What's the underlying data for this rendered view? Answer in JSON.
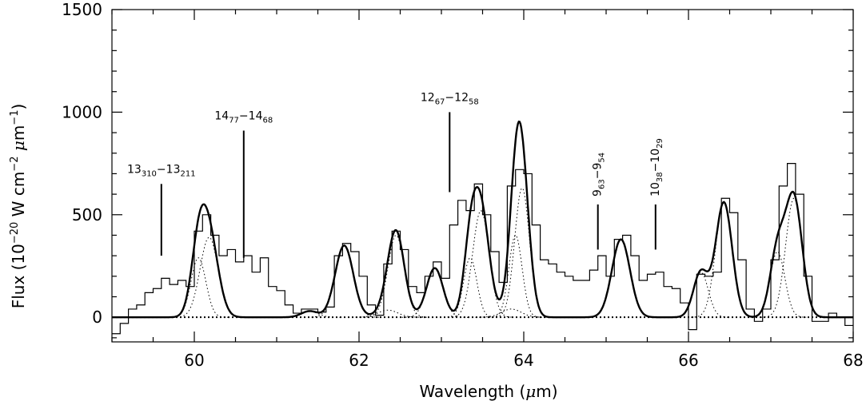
{
  "chart_data": {
    "type": "line",
    "xlabel": {
      "prefix": "Wavelength (",
      "mu": "μ",
      "suffix": "m)"
    },
    "ylabel": {
      "prefix": "Flux (10",
      "exp1": "−20",
      "mid": " W cm",
      "exp2": "−2",
      "space": " ",
      "mu": "μ",
      "m": "m",
      "exp3": "−1",
      "close": ")"
    },
    "xlim": [
      59,
      68
    ],
    "ylim": [
      -120,
      1500
    ],
    "x_ticks": [
      60,
      62,
      64,
      66,
      68
    ],
    "y_ticks": [
      0,
      500,
      1000,
      1500
    ],
    "legend": "none",
    "grid": false,
    "observed_spectrum": {
      "style": "histogram",
      "bins": [
        [
          59.0,
          -80
        ],
        [
          59.1,
          -30
        ],
        [
          59.2,
          40
        ],
        [
          59.3,
          60
        ],
        [
          59.4,
          120
        ],
        [
          59.5,
          140
        ],
        [
          59.6,
          190
        ],
        [
          59.7,
          160
        ],
        [
          59.8,
          180
        ],
        [
          59.9,
          150
        ],
        [
          60.0,
          420
        ],
        [
          60.1,
          500
        ],
        [
          60.2,
          400
        ],
        [
          60.3,
          300
        ],
        [
          60.4,
          330
        ],
        [
          60.5,
          270
        ],
        [
          60.6,
          300
        ],
        [
          60.7,
          220
        ],
        [
          60.8,
          290
        ],
        [
          60.9,
          150
        ],
        [
          61.0,
          130
        ],
        [
          61.1,
          60
        ],
        [
          61.2,
          20
        ],
        [
          61.3,
          40
        ],
        [
          61.4,
          40
        ],
        [
          61.5,
          25
        ],
        [
          61.6,
          50
        ],
        [
          61.7,
          300
        ],
        [
          61.8,
          360
        ],
        [
          61.9,
          320
        ],
        [
          62.0,
          200
        ],
        [
          62.1,
          60
        ],
        [
          62.2,
          10
        ],
        [
          62.3,
          260
        ],
        [
          62.4,
          420
        ],
        [
          62.5,
          330
        ],
        [
          62.6,
          150
        ],
        [
          62.7,
          120
        ],
        [
          62.8,
          200
        ],
        [
          62.9,
          270
        ],
        [
          63.0,
          190
        ],
        [
          63.1,
          450
        ],
        [
          63.2,
          570
        ],
        [
          63.3,
          520
        ],
        [
          63.4,
          650
        ],
        [
          63.5,
          500
        ],
        [
          63.6,
          320
        ],
        [
          63.7,
          170
        ],
        [
          63.8,
          640
        ],
        [
          63.9,
          720
        ],
        [
          64.0,
          700
        ],
        [
          64.1,
          450
        ],
        [
          64.2,
          280
        ],
        [
          64.3,
          260
        ],
        [
          64.4,
          220
        ],
        [
          64.5,
          200
        ],
        [
          64.6,
          180
        ],
        [
          64.7,
          180
        ],
        [
          64.8,
          230
        ],
        [
          64.9,
          300
        ],
        [
          65.0,
          200
        ],
        [
          65.1,
          380
        ],
        [
          65.2,
          400
        ],
        [
          65.3,
          300
        ],
        [
          65.4,
          180
        ],
        [
          65.5,
          210
        ],
        [
          65.6,
          220
        ],
        [
          65.7,
          150
        ],
        [
          65.8,
          140
        ],
        [
          65.9,
          70
        ],
        [
          66.0,
          -60
        ],
        [
          66.1,
          210
        ],
        [
          66.2,
          200
        ],
        [
          66.3,
          220
        ],
        [
          66.4,
          580
        ],
        [
          66.5,
          510
        ],
        [
          66.6,
          280
        ],
        [
          66.7,
          40
        ],
        [
          66.8,
          -20
        ],
        [
          66.9,
          40
        ],
        [
          67.0,
          280
        ],
        [
          67.1,
          640
        ],
        [
          67.2,
          750
        ],
        [
          67.3,
          600
        ],
        [
          67.4,
          200
        ],
        [
          67.5,
          -20
        ],
        [
          67.6,
          -20
        ],
        [
          67.7,
          20
        ],
        [
          67.8,
          0
        ],
        [
          67.9,
          -40
        ]
      ]
    },
    "fit_components": [
      {
        "center": 60.05,
        "amplitude": 290,
        "sigma": 0.09
      },
      {
        "center": 60.18,
        "amplitude": 390,
        "sigma": 0.11
      },
      {
        "center": 61.4,
        "amplitude": 30,
        "sigma": 0.1
      },
      {
        "center": 61.82,
        "amplitude": 350,
        "sigma": 0.11
      },
      {
        "center": 62.35,
        "amplitude": 35,
        "sigma": 0.12
      },
      {
        "center": 62.45,
        "amplitude": 400,
        "sigma": 0.1
      },
      {
        "center": 62.92,
        "amplitude": 240,
        "sigma": 0.1
      },
      {
        "center": 63.35,
        "amplitude": 290,
        "sigma": 0.08
      },
      {
        "center": 63.48,
        "amplitude": 520,
        "sigma": 0.1
      },
      {
        "center": 63.9,
        "amplitude": 400,
        "sigma": 0.08
      },
      {
        "center": 63.98,
        "amplitude": 630,
        "sigma": 0.09
      },
      {
        "center": 63.85,
        "amplitude": 40,
        "sigma": 0.12
      },
      {
        "center": 65.18,
        "amplitude": 380,
        "sigma": 0.11
      },
      {
        "center": 66.15,
        "amplitude": 220,
        "sigma": 0.09
      },
      {
        "center": 66.43,
        "amplitude": 560,
        "sigma": 0.1
      },
      {
        "center": 67.08,
        "amplitude": 320,
        "sigma": 0.09
      },
      {
        "center": 67.28,
        "amplitude": 580,
        "sigma": 0.1
      }
    ],
    "total_fit": {
      "style": "solid-bold"
    },
    "baseline": {
      "value": 0,
      "style": "dotted"
    },
    "annotations": [
      {
        "main1": "13",
        "sub1": "310",
        "dash": "−",
        "main2": "13",
        "sub2": "211",
        "x": 59.6,
        "line_from": 300,
        "line_to": 650,
        "orient": "horizontal"
      },
      {
        "main1": "14",
        "sub1": "77",
        "dash": "−",
        "main2": "14",
        "sub2": "68",
        "x": 60.6,
        "line_from": 290,
        "line_to": 910,
        "orient": "horizontal"
      },
      {
        "main1": "12",
        "sub1": "67",
        "dash": "−",
        "main2": "12",
        "sub2": "58",
        "x": 63.1,
        "line_from": 610,
        "line_to": 1000,
        "orient": "horizontal"
      },
      {
        "main1": "9",
        "sub1": "63",
        "dash": "−",
        "main2": "9",
        "sub2": "54",
        "x": 64.9,
        "line_from": 330,
        "line_to": 550,
        "orient": "vertical"
      },
      {
        "main1": "10",
        "sub1": "38",
        "dash": "−",
        "main2": "10",
        "sub2": "29",
        "x": 65.6,
        "line_from": 330,
        "line_to": 550,
        "orient": "vertical"
      }
    ]
  }
}
